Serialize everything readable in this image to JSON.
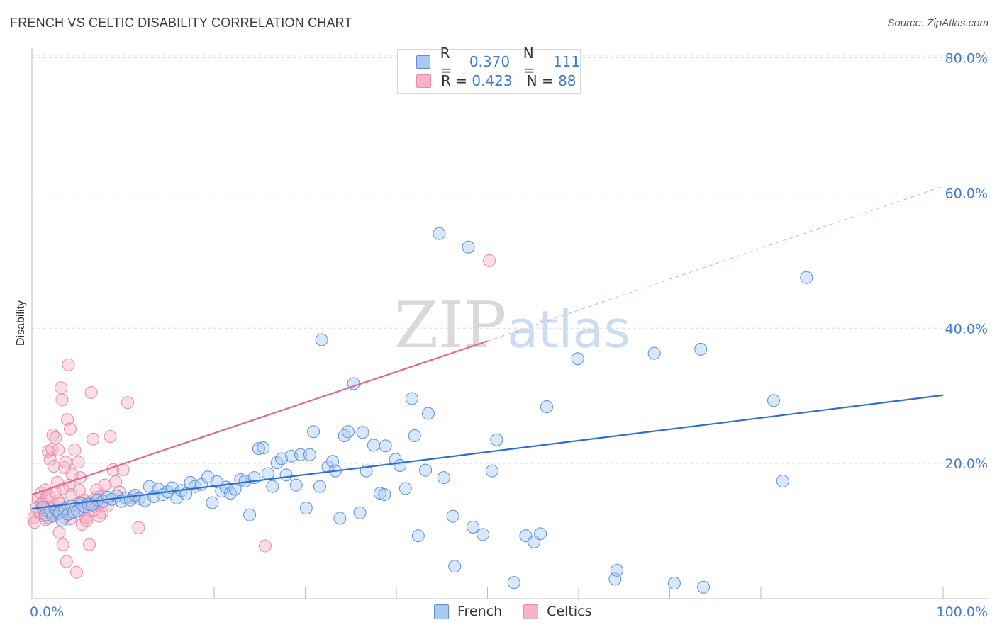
{
  "title": "FRENCH VS CELTIC DISABILITY CORRELATION CHART",
  "source": "Source: ZipAtlas.com",
  "watermark": {
    "zip": "ZIP",
    "atlas": "atlas"
  },
  "colors": {
    "french_fill": "#a9c9f3",
    "french_stroke": "#5b8fd8",
    "french_line": "#2a6fd4",
    "celtics_fill": "#f6b3c8",
    "celtics_stroke": "#e889a8",
    "celtics_line": "#e2688f",
    "axis_text": "#3f7ad4",
    "grid": "#dcdcdc"
  },
  "legend": {
    "rows": [
      {
        "series": "French",
        "r_label": "R =",
        "r_value": "0.370",
        "n_label": "N =",
        "n_value": "111"
      },
      {
        "series": "Celtics",
        "r_label": "R =",
        "r_value": "0.423",
        "n_label": "N =",
        "n_value": "88"
      }
    ]
  },
  "bottom_legend": [
    "French",
    "Celtics"
  ],
  "chart_data": {
    "type": "scatter",
    "title": "FRENCH VS CELTIC DISABILITY CORRELATION CHART",
    "xlabel": "",
    "ylabel": "Disability",
    "xlim": [
      0,
      100
    ],
    "ylim": [
      0,
      82
    ],
    "x_tick_labels": [
      "0.0%",
      "100.0%"
    ],
    "y_ticks": [
      20,
      40,
      60,
      80
    ],
    "y_tick_labels": [
      "20.0%",
      "40.0%",
      "60.0%",
      "80.0%"
    ],
    "grid": "horizontal dashed",
    "legend_placement": "top-center",
    "series": [
      {
        "name": "French",
        "r": 0.37,
        "n": 111,
        "trend": {
          "x": [
            0,
            100
          ],
          "y": [
            13.3,
            30.1
          ]
        },
        "points": [
          [
            1.2,
            13.5
          ],
          [
            1.5,
            12.4
          ],
          [
            2.0,
            12.9
          ],
          [
            2.3,
            12.2
          ],
          [
            2.7,
            13.1
          ],
          [
            3.0,
            12.7
          ],
          [
            3.3,
            11.6
          ],
          [
            3.6,
            13.3
          ],
          [
            4.0,
            12.5
          ],
          [
            4.3,
            13.7
          ],
          [
            4.6,
            12.8
          ],
          [
            5.0,
            13.0
          ],
          [
            5.4,
            14.1
          ],
          [
            5.8,
            13.6
          ],
          [
            6.2,
            14.0
          ],
          [
            6.6,
            13.9
          ],
          [
            7.2,
            14.6
          ],
          [
            7.8,
            14.4
          ],
          [
            8.3,
            15.0
          ],
          [
            8.8,
            14.7
          ],
          [
            9.3,
            15.2
          ],
          [
            9.8,
            14.4
          ],
          [
            10.3,
            14.9
          ],
          [
            10.8,
            14.6
          ],
          [
            11.3,
            15.3
          ],
          [
            11.8,
            14.8
          ],
          [
            12.4,
            14.5
          ],
          [
            12.9,
            16.6
          ],
          [
            13.4,
            15.1
          ],
          [
            13.9,
            16.2
          ],
          [
            14.4,
            15.4
          ],
          [
            14.9,
            15.8
          ],
          [
            15.4,
            16.4
          ],
          [
            15.9,
            14.9
          ],
          [
            16.4,
            16.0
          ],
          [
            16.9,
            15.5
          ],
          [
            17.4,
            17.2
          ],
          [
            17.9,
            16.6
          ],
          [
            18.6,
            16.9
          ],
          [
            19.3,
            18.0
          ],
          [
            19.8,
            14.2
          ],
          [
            20.3,
            17.3
          ],
          [
            20.8,
            15.9
          ],
          [
            21.3,
            16.5
          ],
          [
            21.8,
            15.6
          ],
          [
            22.3,
            16.2
          ],
          [
            22.9,
            17.6
          ],
          [
            23.4,
            17.4
          ],
          [
            23.9,
            12.4
          ],
          [
            24.4,
            17.9
          ],
          [
            24.9,
            22.2
          ],
          [
            25.4,
            22.3
          ],
          [
            25.9,
            18.5
          ],
          [
            26.4,
            16.6
          ],
          [
            26.9,
            20.1
          ],
          [
            27.4,
            20.7
          ],
          [
            27.9,
            18.3
          ],
          [
            28.5,
            21.1
          ],
          [
            29.0,
            16.8
          ],
          [
            29.5,
            21.3
          ],
          [
            30.1,
            13.4
          ],
          [
            30.5,
            21.3
          ],
          [
            30.9,
            24.7
          ],
          [
            31.6,
            16.6
          ],
          [
            31.8,
            38.3
          ],
          [
            32.5,
            19.5
          ],
          [
            33.0,
            20.3
          ],
          [
            33.3,
            18.9
          ],
          [
            33.8,
            11.9
          ],
          [
            34.3,
            24.1
          ],
          [
            34.7,
            24.7
          ],
          [
            35.3,
            31.8
          ],
          [
            36.0,
            12.7
          ],
          [
            36.3,
            24.6
          ],
          [
            36.7,
            18.9
          ],
          [
            37.5,
            22.7
          ],
          [
            38.2,
            15.6
          ],
          [
            38.7,
            15.4
          ],
          [
            38.8,
            22.6
          ],
          [
            39.9,
            20.6
          ],
          [
            40.4,
            19.7
          ],
          [
            41.0,
            16.3
          ],
          [
            41.7,
            29.6
          ],
          [
            42.0,
            24.1
          ],
          [
            42.4,
            9.3
          ],
          [
            43.2,
            19.0
          ],
          [
            43.5,
            27.4
          ],
          [
            44.7,
            54.0
          ],
          [
            45.2,
            17.9
          ],
          [
            46.2,
            12.2
          ],
          [
            46.4,
            4.8
          ],
          [
            47.9,
            52.0
          ],
          [
            48.4,
            10.6
          ],
          [
            49.5,
            9.5
          ],
          [
            50.5,
            18.9
          ],
          [
            51.0,
            23.5
          ],
          [
            52.9,
            2.4
          ],
          [
            54.2,
            9.3
          ],
          [
            55.1,
            8.4
          ],
          [
            55.8,
            9.6
          ],
          [
            56.5,
            28.4
          ],
          [
            59.9,
            35.5
          ],
          [
            64.0,
            2.9
          ],
          [
            64.2,
            4.2
          ],
          [
            68.3,
            36.3
          ],
          [
            70.5,
            2.3
          ],
          [
            73.4,
            36.9
          ],
          [
            73.7,
            1.7
          ],
          [
            81.4,
            29.3
          ],
          [
            82.4,
            17.4
          ],
          [
            85.0,
            47.5
          ]
        ]
      },
      {
        "name": "Celtics",
        "r": 0.423,
        "n": 88,
        "trend": {
          "x": [
            0,
            50
          ],
          "y": [
            15.4,
            38.1
          ],
          "dashed_extension": {
            "x": [
              50,
              100
            ],
            "y": [
              38.1,
              61.0
            ]
          }
        },
        "points": [
          [
            0.2,
            12.0
          ],
          [
            0.5,
            13.5
          ],
          [
            0.7,
            14.8
          ],
          [
            0.9,
            12.6
          ],
          [
            1.0,
            15.6
          ],
          [
            1.1,
            13.9
          ],
          [
            1.2,
            14.2
          ],
          [
            1.3,
            12.2
          ],
          [
            1.4,
            13.1
          ],
          [
            1.5,
            16.1
          ],
          [
            1.6,
            14.9
          ],
          [
            1.7,
            12.9
          ],
          [
            1.8,
            21.8
          ],
          [
            1.9,
            15.2
          ],
          [
            2.0,
            20.6
          ],
          [
            2.1,
            13.3
          ],
          [
            2.2,
            22.1
          ],
          [
            2.3,
            24.2
          ],
          [
            2.4,
            19.6
          ],
          [
            2.5,
            13.6
          ],
          [
            2.6,
            23.8
          ],
          [
            2.7,
            12.5
          ],
          [
            2.8,
            17.2
          ],
          [
            2.9,
            22.0
          ],
          [
            3.0,
            9.8
          ],
          [
            3.1,
            14.1
          ],
          [
            3.2,
            31.2
          ],
          [
            3.3,
            29.4
          ],
          [
            3.4,
            8.0
          ],
          [
            3.5,
            13.0
          ],
          [
            3.6,
            19.4
          ],
          [
            3.7,
            20.2
          ],
          [
            3.8,
            5.5
          ],
          [
            3.9,
            26.5
          ],
          [
            4.0,
            34.6
          ],
          [
            4.1,
            16.8
          ],
          [
            4.2,
            25.1
          ],
          [
            4.3,
            15.4
          ],
          [
            4.4,
            12.8
          ],
          [
            4.5,
            13.8
          ],
          [
            4.7,
            22.0
          ],
          [
            4.9,
            3.9
          ],
          [
            5.1,
            20.2
          ],
          [
            5.3,
            17.9
          ],
          [
            5.5,
            11.0
          ],
          [
            5.7,
            14.6
          ],
          [
            5.9,
            12.0
          ],
          [
            6.1,
            14.2
          ],
          [
            6.3,
            8.0
          ],
          [
            6.5,
            30.5
          ],
          [
            6.7,
            23.6
          ],
          [
            6.9,
            13.7
          ],
          [
            7.1,
            16.1
          ],
          [
            7.3,
            14.1
          ],
          [
            7.5,
            15.1
          ],
          [
            7.7,
            12.7
          ],
          [
            8.0,
            16.8
          ],
          [
            8.3,
            13.7
          ],
          [
            8.6,
            24.0
          ],
          [
            8.9,
            19.1
          ],
          [
            9.2,
            17.3
          ],
          [
            9.6,
            15.8
          ],
          [
            10.0,
            19.1
          ],
          [
            10.5,
            29.0
          ],
          [
            11.1,
            15.0
          ],
          [
            11.7,
            10.5
          ],
          [
            25.6,
            7.8
          ],
          [
            50.2,
            50.0
          ],
          [
            0.3,
            11.3
          ],
          [
            0.8,
            13.0
          ],
          [
            1.5,
            11.7
          ],
          [
            2.2,
            12.5
          ],
          [
            2.9,
            14.5
          ],
          [
            3.6,
            12.0
          ],
          [
            4.2,
            11.8
          ],
          [
            5.0,
            14.0
          ],
          [
            5.6,
            13.3
          ],
          [
            6.2,
            12.3
          ],
          [
            6.8,
            13.1
          ],
          [
            7.4,
            12.2
          ],
          [
            1.0,
            14.0
          ],
          [
            1.8,
            12.0
          ],
          [
            2.6,
            15.7
          ],
          [
            3.4,
            16.3
          ],
          [
            4.4,
            18.4
          ],
          [
            5.2,
            16.0
          ],
          [
            6.0,
            11.5
          ],
          [
            7.0,
            14.9
          ]
        ]
      }
    ]
  }
}
